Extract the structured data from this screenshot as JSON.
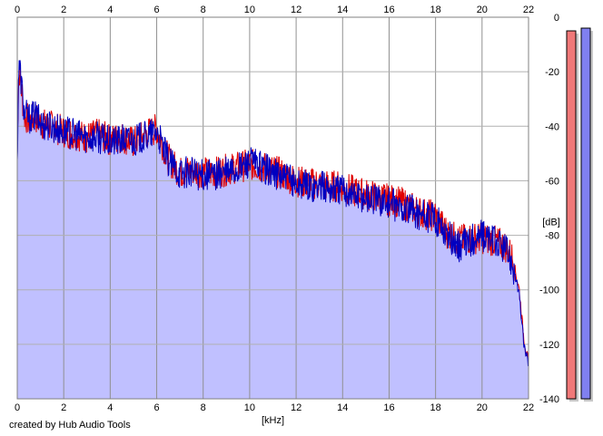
{
  "chart_data": {
    "type": "area",
    "xlabel": "[kHz]",
    "ylabel": "[dB]",
    "xlim": [
      0,
      22
    ],
    "ylim": [
      -140,
      0
    ],
    "x_ticks": [
      "0",
      "2",
      "4",
      "6",
      "8",
      "10",
      "12",
      "14",
      "16",
      "18",
      "20",
      "22"
    ],
    "y_ticks": [
      "0",
      "-20",
      "-40",
      "-60",
      "-80",
      "-100",
      "-120",
      "-140"
    ],
    "grid": true,
    "series": [
      {
        "color": "#e00000",
        "x": [
          0.0,
          0.05,
          0.1,
          0.2,
          0.3,
          0.5,
          0.8,
          1.0,
          1.5,
          2.0,
          2.5,
          3.0,
          3.5,
          4.0,
          4.5,
          5.0,
          5.5,
          6.0,
          6.5,
          7.0,
          7.5,
          8.0,
          8.5,
          9.0,
          9.5,
          10.0,
          10.5,
          11.0,
          11.5,
          12.0,
          12.5,
          13.0,
          13.5,
          14.0,
          14.5,
          15.0,
          15.5,
          16.0,
          16.5,
          17.0,
          17.5,
          18.0,
          18.5,
          19.0,
          19.5,
          20.0,
          20.5,
          21.0,
          21.3,
          21.6,
          21.8,
          22.0
        ],
        "values": [
          -50,
          -24,
          -20,
          -28,
          -36,
          -38,
          -37,
          -39,
          -40,
          -42,
          -43,
          -44,
          -43,
          -45,
          -44,
          -46,
          -43,
          -41,
          -52,
          -57,
          -56,
          -57,
          -57,
          -56,
          -55,
          -54,
          -55,
          -56,
          -58,
          -60,
          -61,
          -61,
          -62,
          -62,
          -64,
          -65,
          -66,
          -67,
          -68,
          -70,
          -72,
          -73,
          -79,
          -82,
          -81,
          -81,
          -82,
          -84,
          -88,
          -100,
          -118,
          -127
        ]
      },
      {
        "color": "#0000c0",
        "x": [
          0.0,
          0.05,
          0.1,
          0.2,
          0.3,
          0.5,
          0.8,
          1.0,
          1.5,
          2.0,
          2.5,
          3.0,
          3.5,
          4.0,
          4.5,
          5.0,
          5.5,
          6.0,
          6.5,
          7.0,
          7.5,
          8.0,
          8.5,
          9.0,
          9.5,
          10.0,
          10.5,
          11.0,
          11.5,
          12.0,
          12.5,
          13.0,
          13.5,
          14.0,
          14.5,
          15.0,
          15.5,
          16.0,
          16.5,
          17.0,
          17.5,
          18.0,
          18.5,
          19.0,
          19.5,
          20.0,
          20.5,
          21.0,
          21.3,
          21.6,
          21.8,
          22.0
        ],
        "values": [
          -55,
          -22,
          -18,
          -26,
          -35,
          -37,
          -36,
          -39,
          -40,
          -42,
          -43,
          -44,
          -44,
          -46,
          -45,
          -45,
          -44,
          -42,
          -53,
          -57,
          -57,
          -58,
          -58,
          -57,
          -56,
          -53,
          -55,
          -57,
          -59,
          -61,
          -62,
          -62,
          -63,
          -63,
          -65,
          -66,
          -67,
          -68,
          -70,
          -71,
          -73,
          -74,
          -80,
          -84,
          -82,
          -80,
          -82,
          -85,
          -90,
          -102,
          -120,
          -128
        ]
      }
    ]
  },
  "meters": [
    {
      "color": "#f07878",
      "level_db": -5
    },
    {
      "color": "#8080f0",
      "level_db": -4
    }
  ],
  "credit_text": "created by Hub Audio Tools"
}
